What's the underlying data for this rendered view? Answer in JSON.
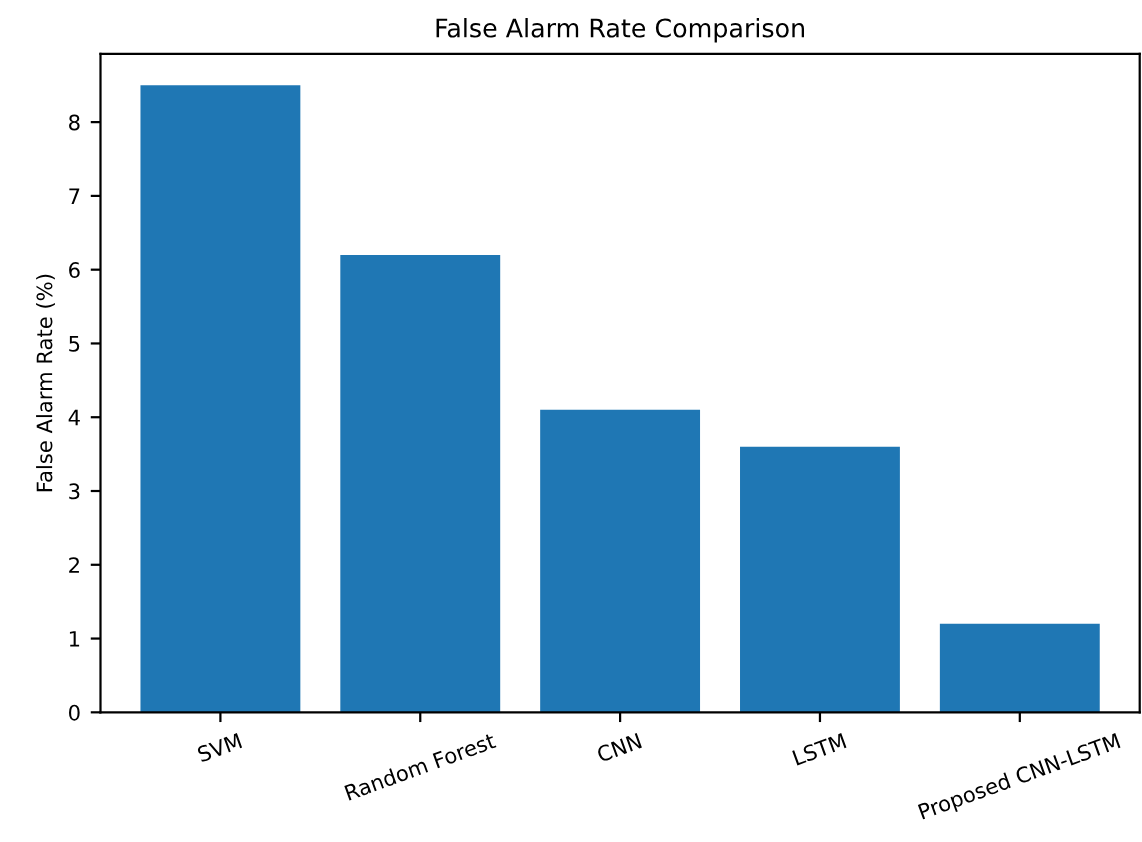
{
  "chart_data": {
    "type": "bar",
    "title": "False Alarm Rate Comparison",
    "ylabel": "False Alarm Rate (%)",
    "categories": [
      "SVM",
      "Random Forest",
      "CNN",
      "LSTM",
      "Proposed CNN-LSTM"
    ],
    "values": [
      8.5,
      6.2,
      4.1,
      3.6,
      1.2
    ],
    "color": "#1f77b4",
    "ylim": [
      0,
      8.925
    ],
    "yticks": [
      0,
      1,
      2,
      3,
      4,
      5,
      6,
      7,
      8
    ],
    "grid": false
  }
}
